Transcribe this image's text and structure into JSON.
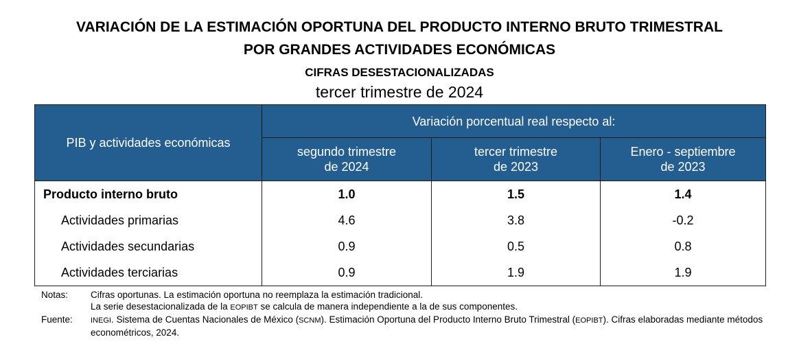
{
  "title": {
    "line1": "VARIACIÓN DE LA ESTIMACIÓN OPORTUNA DEL PRODUCTO INTERNO BRUTO TRIMESTRAL",
    "line2": "POR GRANDES ACTIVIDADES ECONÓMICAS",
    "subtitle": "CIFRAS DESESTACIONALIZADAS",
    "period": "tercer trimestre de 2024"
  },
  "table": {
    "row_header": "PIB y actividades económicas",
    "group_header": "Variación porcentual real respecto al:",
    "columns": [
      {
        "l1": "segundo trimestre",
        "l2": "de 2024"
      },
      {
        "l1": "tercer trimestre",
        "l2": "de 2023"
      },
      {
        "l1": "Enero - septiembre",
        "l2": "de 2023"
      }
    ],
    "rows": [
      {
        "label": "Producto interno bruto",
        "values": [
          "1.0",
          "1.5",
          "1.4"
        ]
      },
      {
        "label": "Actividades primarias",
        "values": [
          "4.6",
          "3.8",
          "-0.2"
        ]
      },
      {
        "label": "Actividades secundarias",
        "values": [
          "0.9",
          "0.5",
          "0.8"
        ]
      },
      {
        "label": "Actividades terciarias",
        "values": [
          "0.9",
          "1.9",
          "1.9"
        ]
      }
    ]
  },
  "notes": {
    "notas_label": "Notas:",
    "nota1": "Cifras oportunas. La estimación oportuna no reemplaza la estimación tradicional.",
    "nota2a": "La serie desestacionalizada de la ",
    "nota2b": "EOPIBT",
    "nota2c": " se calcula de manera independiente a la de sus componentes.",
    "fuente_label": "Fuente:",
    "f_a": "INEGI",
    "f_b": ". Sistema de Cuentas Nacionales de México (",
    "f_c": "SCNM",
    "f_d": "). Estimación Oportuna del Producto Interno Bruto Trimestral (",
    "f_e": "EOPIBT",
    "f_f": "). Cifras elaboradas mediante métodos econométricos, 2024."
  }
}
